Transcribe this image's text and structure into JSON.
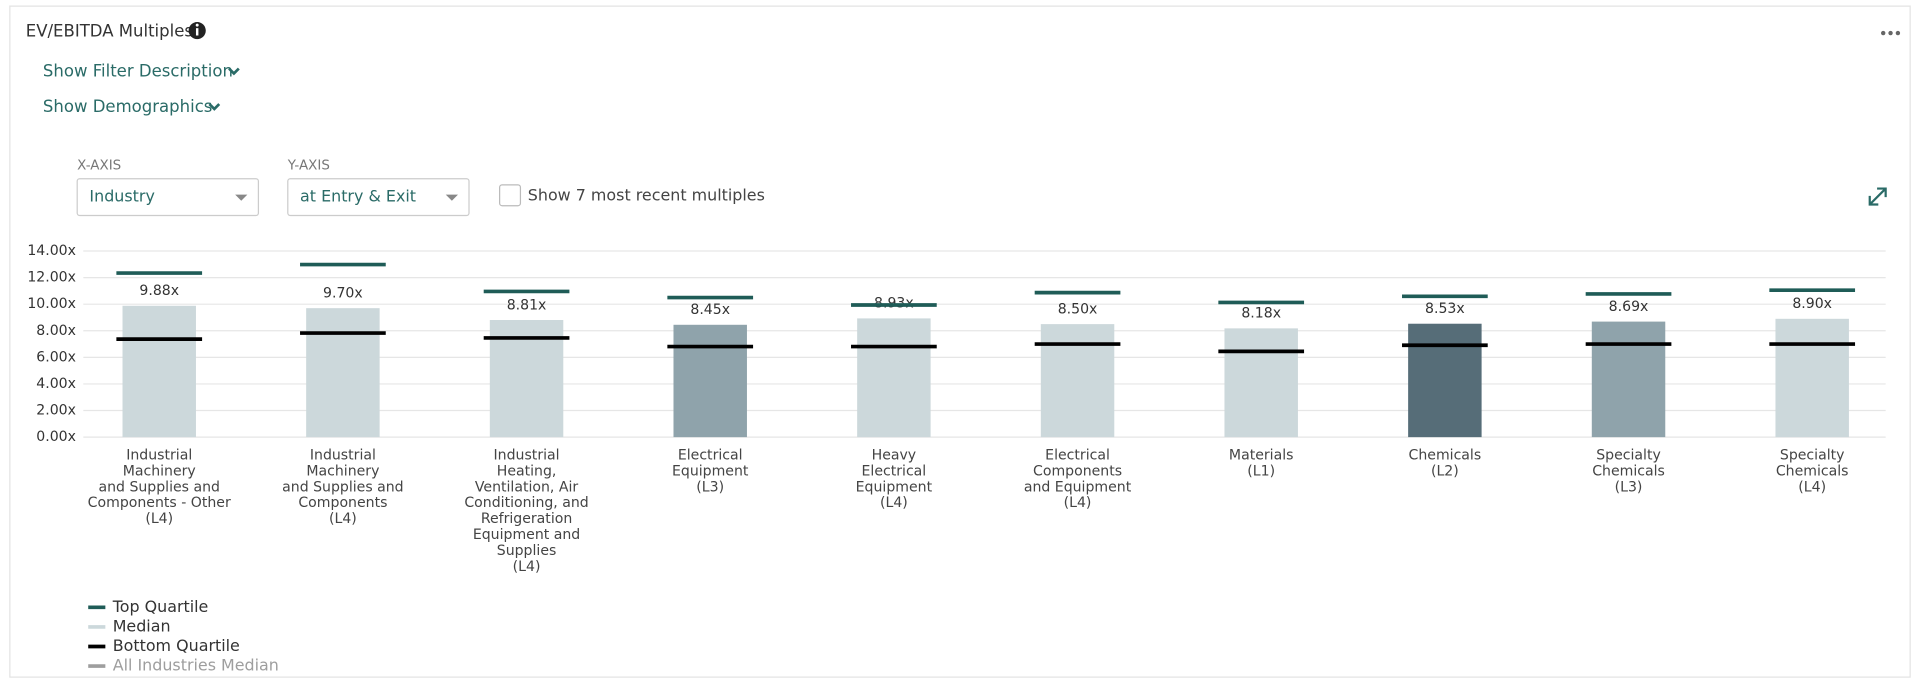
{
  "ui": {
    "title": "EV/EBITDA Multiples",
    "filter_link": "Show Filter Description",
    "demographics_link": "Show Demographics",
    "x_axis_label": "X-AXIS",
    "x_axis_value": "Industry",
    "y_axis_label": "Y-AXIS",
    "y_axis_value": "at Entry & Exit",
    "checkbox_label": "Show 7 most recent multiples"
  },
  "chart_data": {
    "type": "bar",
    "categories": [
      [
        "Industrial",
        "Machinery",
        "and Supplies and",
        "Components - Other",
        "(L4)"
      ],
      [
        "Industrial",
        "Machinery",
        "and Supplies and",
        "Components",
        "(L4)"
      ],
      [
        "Industrial",
        "Heating,",
        "Ventilation, Air",
        "Conditioning, and",
        "Refrigeration",
        "Equipment and",
        "Supplies",
        "(L4)"
      ],
      [
        "Electrical",
        "Equipment",
        "(L3)"
      ],
      [
        "Heavy",
        "Electrical",
        "Equipment",
        "(L4)"
      ],
      [
        "Electrical",
        "Components",
        "and Equipment",
        "(L4)"
      ],
      [
        "Materials",
        "(L1)"
      ],
      [
        "Chemicals",
        "(L2)"
      ],
      [
        "Specialty",
        "Chemicals",
        "(L3)"
      ],
      [
        "Specialty",
        "Chemicals",
        "(L4)"
      ]
    ],
    "series": [
      {
        "name": "Top Quartile",
        "color": "#1f5c57",
        "values": [
          12.34,
          12.98,
          10.96,
          10.5,
          9.94,
          10.87,
          10.13,
          10.59,
          10.77,
          11.05
        ]
      },
      {
        "name": "Median",
        "color": "#ccd8db",
        "values": [
          9.88,
          9.7,
          8.81,
          8.45,
          8.93,
          8.5,
          8.18,
          8.53,
          8.69,
          8.9
        ],
        "value_labels": [
          "9.88x",
          "9.70x",
          "8.81x",
          "8.45x",
          "8.93x",
          "8.50x",
          "8.18x",
          "8.53x",
          "8.69x",
          "8.90x"
        ]
      },
      {
        "name": "Bottom Quartile",
        "color": "#000000",
        "values": [
          7.37,
          7.83,
          7.46,
          6.81,
          6.81,
          7.0,
          6.45,
          6.91,
          7.0,
          7.0
        ]
      }
    ],
    "bar_colors": [
      "#ccd8db",
      "#ccd8db",
      "#ccd8db",
      "#8fa3ab",
      "#ccd8db",
      "#ccd8db",
      "#ccd8db",
      "#566d78",
      "#8fa3ab",
      "#ccd8db"
    ],
    "reference_legend": {
      "name": "All Industries Median",
      "color": "#9e9e9e"
    },
    "ylim": [
      0,
      14
    ],
    "yticks": [
      {
        "value": 0,
        "label": "0.00x"
      },
      {
        "value": 2,
        "label": "2.00x"
      },
      {
        "value": 4,
        "label": "4.00x"
      },
      {
        "value": 6,
        "label": "6.00x"
      },
      {
        "value": 8,
        "label": "8.00x"
      },
      {
        "value": 10,
        "label": "10.00x"
      },
      {
        "value": 12,
        "label": "12.00x"
      },
      {
        "value": 14,
        "label": "14.00x"
      }
    ],
    "grid": true
  }
}
